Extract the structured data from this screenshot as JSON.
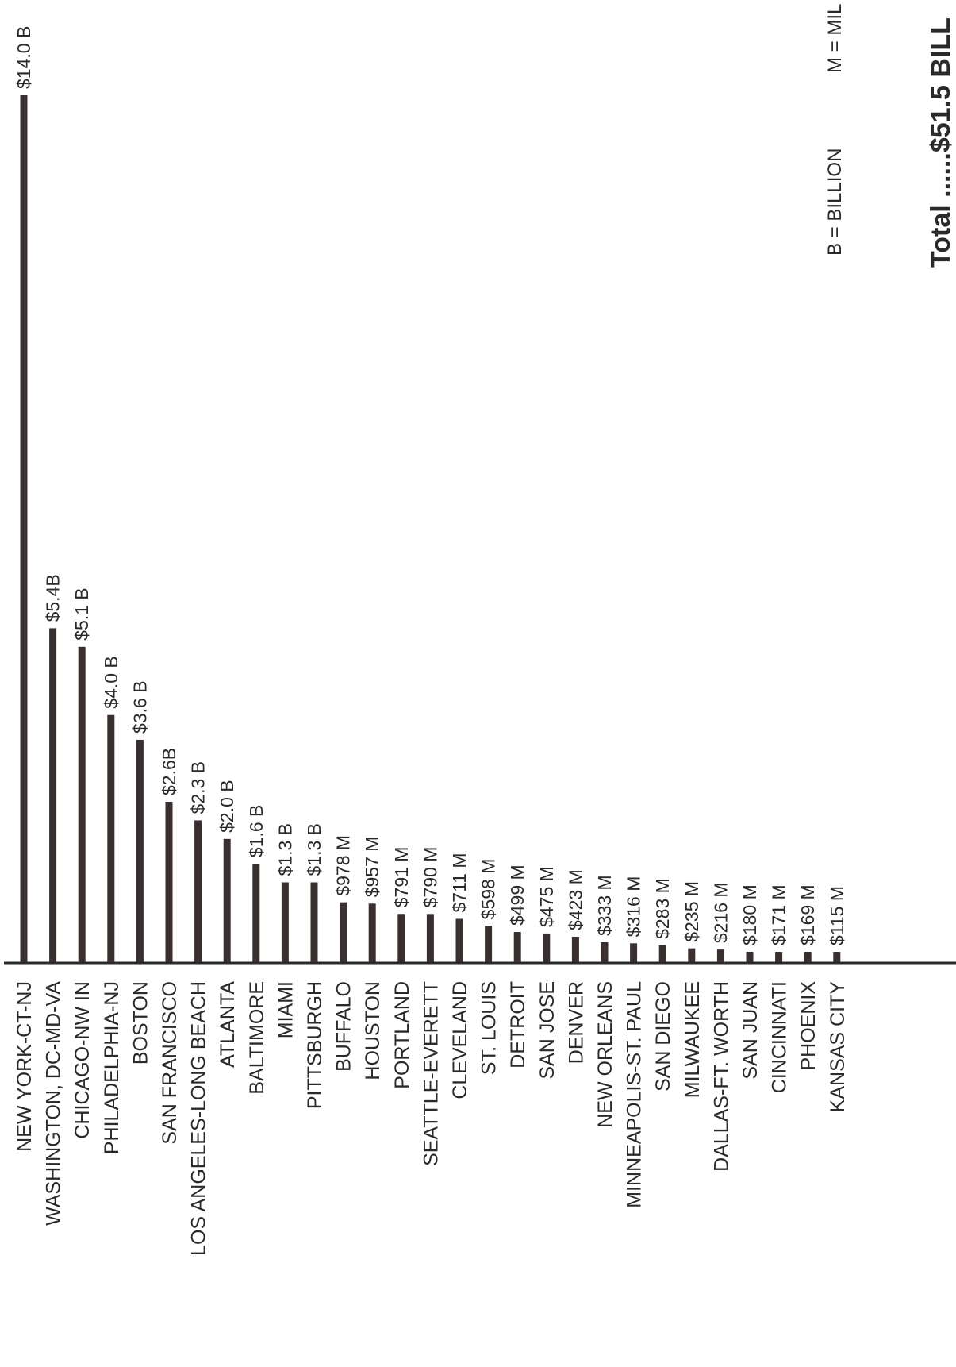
{
  "chart_data": {
    "type": "bar",
    "orientation": "vertical",
    "categories": [
      "NEW YORK-CT-NJ",
      "WASHINGTON, DC-MD-VA",
      "CHICAGO-NW IN",
      "PHILADELPHIA-NJ",
      "BOSTON",
      "SAN FRANCISCO",
      "LOS ANGELES-LONG BEACH",
      "ATLANTA",
      "BALTIMORE",
      "MIAMI",
      "PITTSBURGH",
      "BUFFALO",
      "HOUSTON",
      "PORTLAND",
      "SEATTLE-EVERETT",
      "CLEVELAND",
      "ST. LOUIS",
      "DETROIT",
      "SAN JOSE",
      "DENVER",
      "NEW ORLEANS",
      "MINNEAPOLIS-ST. PAUL",
      "SAN DIEGO",
      "MILWAUKEE",
      "DALLAS-FT. WORTH",
      "SAN JUAN",
      "CINCINNATI",
      "PHOENIX",
      "KANSAS CITY"
    ],
    "values": [
      14000,
      5400,
      5100,
      4000,
      3600,
      2600,
      2300,
      2000,
      1600,
      1300,
      1300,
      978,
      957,
      791,
      790,
      711,
      598,
      499,
      475,
      423,
      333,
      316,
      283,
      235,
      216,
      180,
      171,
      169,
      115
    ],
    "value_labels": [
      "$14.0 B",
      "$5.4B",
      "$5.1 B",
      "$4.0 B",
      "$3.6 B",
      "$2.6B",
      "$2.3 B",
      "$2.0 B",
      "$1.6 B",
      "$1.3 B",
      "$1.3 B",
      "$978 M",
      "$957 M",
      "$791 M",
      "$790 M",
      "$711 M",
      "$598 M",
      "$499 M",
      "$475 M",
      "$423 M",
      "$333 M",
      "$316 M",
      "$283 M",
      "$235 M",
      "$216 M",
      "$180 M",
      "$171 M",
      "$169 M",
      "$115 M"
    ],
    "ylim": [
      0,
      14000
    ],
    "grid": false,
    "legend": {
      "billion": "B = BILLION",
      "million": "M = MIL",
      "total": "Total ......$51.5 BILL"
    },
    "colors": {
      "bar": "#3a2f2f",
      "text": "#2a2a2a"
    }
  }
}
